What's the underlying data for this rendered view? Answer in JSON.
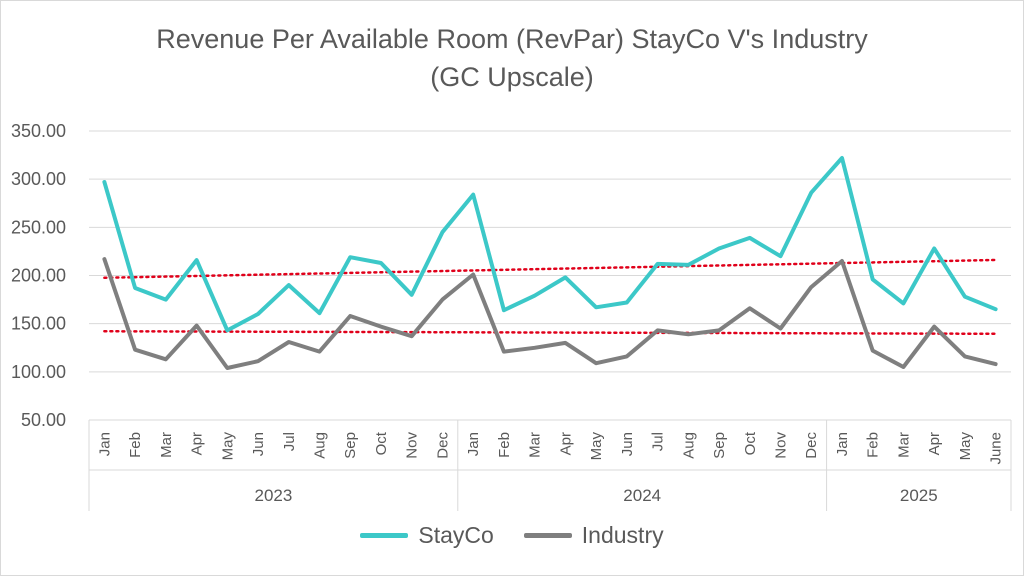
{
  "chart_data": {
    "type": "line",
    "title_line1": "Revenue Per Available Room (RevPar) StayCo V's Industry",
    "title_line2": "(GC Upscale)",
    "ylim": [
      50,
      350
    ],
    "yticks": [
      "350.00",
      "300.00",
      "250.00",
      "200.00",
      "150.00",
      "100.00",
      "50.00"
    ],
    "ytick_values": [
      350,
      300,
      250,
      200,
      150,
      100,
      50
    ],
    "x_months": [
      "Jan",
      "Feb",
      "Mar",
      "Apr",
      "May",
      "Jun",
      "Jul",
      "Aug",
      "Sep",
      "Oct",
      "Nov",
      "Dec",
      "Jan",
      "Feb",
      "Mar",
      "Apr",
      "May",
      "Jun",
      "Jul",
      "Aug",
      "Sep",
      "Oct",
      "Nov",
      "Dec",
      "Jan",
      "Feb",
      "Mar",
      "Apr",
      "May",
      "June"
    ],
    "year_groups": [
      {
        "label": "2023",
        "start": 0,
        "end": 11
      },
      {
        "label": "2024",
        "start": 12,
        "end": 23
      },
      {
        "label": "2025",
        "start": 24,
        "end": 29
      }
    ],
    "grid": true,
    "legend_position": "bottom",
    "series": [
      {
        "name": "StayCo",
        "color": "#3CC8C8",
        "values": [
          297,
          187,
          175,
          216,
          143,
          160,
          190,
          161,
          219,
          213,
          180,
          245,
          284,
          164,
          179,
          198,
          167,
          172,
          212,
          211,
          228,
          239,
          220,
          286,
          322,
          196,
          171,
          228,
          178,
          165
        ]
      },
      {
        "name": "Industry",
        "color": "#7F7F7F",
        "values": [
          217,
          123,
          113,
          148,
          104,
          111,
          131,
          121,
          158,
          147,
          137,
          175,
          201,
          121,
          125,
          130,
          109,
          116,
          143,
          139,
          143,
          166,
          145,
          188,
          215,
          122,
          105,
          147,
          116,
          108
        ]
      }
    ],
    "trendlines": [
      {
        "series": "StayCo",
        "color": "#E0001A",
        "style": "dotted"
      },
      {
        "series": "Industry",
        "color": "#E0001A",
        "style": "dotted"
      }
    ]
  }
}
